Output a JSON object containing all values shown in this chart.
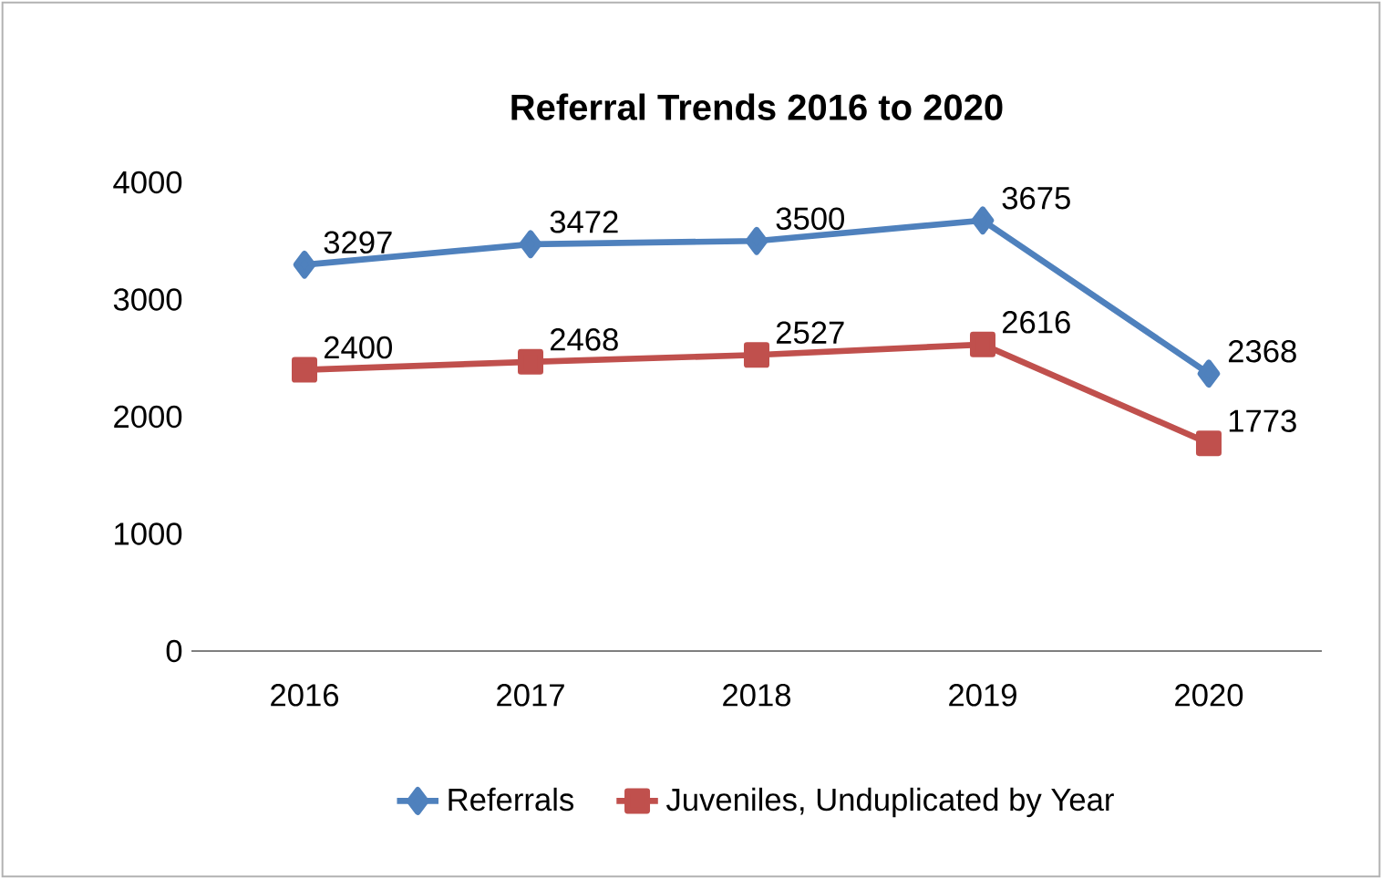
{
  "chart_data": {
    "type": "line",
    "title": "Referral Trends 2016 to 2020",
    "categories": [
      "2016",
      "2017",
      "2018",
      "2019",
      "2020"
    ],
    "series": [
      {
        "name": "Referrals",
        "color": "#4f81bd",
        "marker": "diamond",
        "values": [
          3297,
          3472,
          3500,
          3675,
          2368
        ]
      },
      {
        "name": "Juveniles, Unduplicated by Year",
        "color": "#c0504d",
        "marker": "square",
        "values": [
          2400,
          2468,
          2527,
          2616,
          1773
        ]
      }
    ],
    "ylim": [
      0,
      4000
    ],
    "yticks": [
      0,
      1000,
      2000,
      3000,
      4000
    ],
    "data_labels": true,
    "legend": "bottom",
    "line_style": "solid"
  }
}
